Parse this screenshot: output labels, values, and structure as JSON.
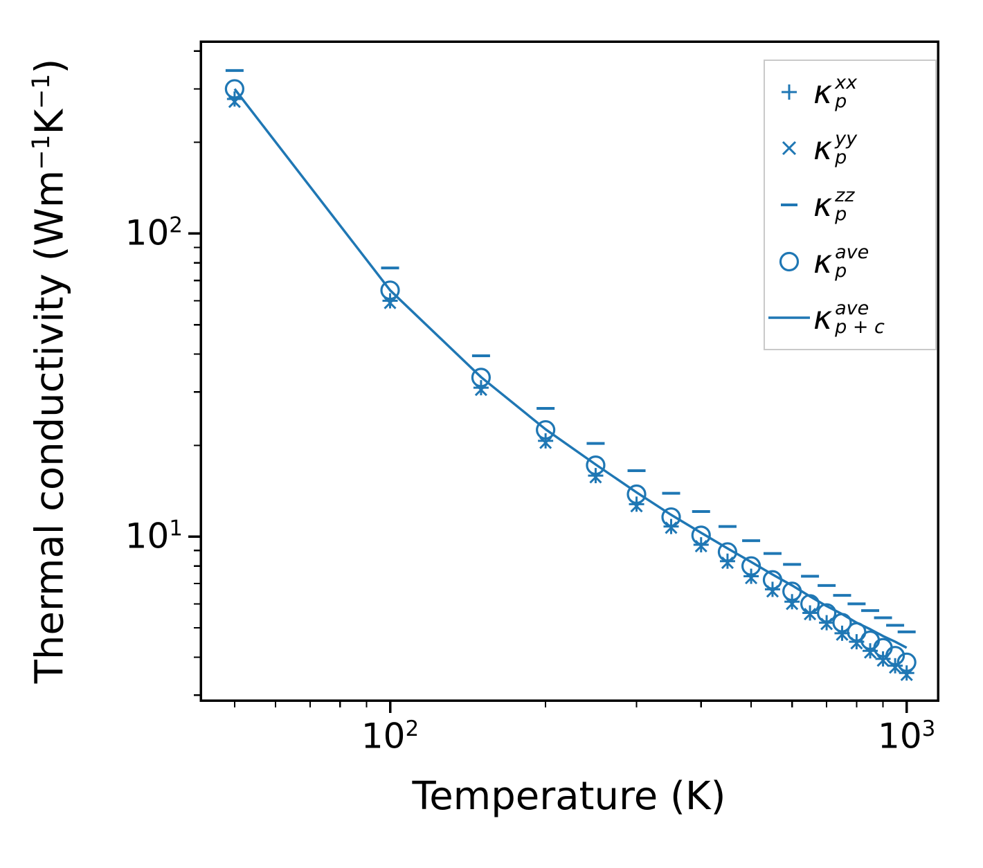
{
  "figure": {
    "background": "#ffffff",
    "accent_color": "#1f77b4"
  },
  "chart_data": {
    "type": "line+scatter",
    "xscale": "log",
    "yscale": "log",
    "title": "",
    "xlabel": "Temperature (K)",
    "ylabel": "Thermal conductivity (Wm⁻¹K⁻¹)",
    "ylabel_parts": [
      {
        "text": "Thermal conductivity (Wm"
      },
      {
        "text": "−1",
        "sup": true
      },
      {
        "text": "K"
      },
      {
        "text": "−1",
        "sup": true
      },
      {
        "text": ")"
      }
    ],
    "color": "#1f77b4",
    "xlim": [
      43,
      1150
    ],
    "ylim": [
      2.88,
      430
    ],
    "grid": false,
    "x": [
      50,
      100,
      150,
      200,
      250,
      300,
      350,
      400,
      450,
      500,
      550,
      600,
      650,
      700,
      750,
      800,
      850,
      900,
      950,
      1000
    ],
    "series": [
      {
        "name": "kappa-p-xx",
        "marker": "plus",
        "values": [
          278,
          60,
          31,
          20.7,
          15.9,
          12.8,
          10.8,
          9.4,
          8.3,
          7.4,
          6.7,
          6.1,
          5.6,
          5.2,
          4.8,
          4.5,
          4.2,
          3.95,
          3.75,
          3.55
        ]
      },
      {
        "name": "kappa-p-yy",
        "marker": "x",
        "values": [
          272,
          59,
          30.5,
          20.4,
          15.7,
          12.6,
          10.7,
          9.3,
          8.2,
          7.3,
          6.6,
          6.0,
          5.55,
          5.15,
          4.75,
          4.45,
          4.15,
          3.9,
          3.7,
          3.5
        ]
      },
      {
        "name": "kappa-p-zz",
        "marker": "hline",
        "values": [
          345,
          77,
          39.5,
          26.5,
          20.3,
          16.5,
          13.9,
          12.1,
          10.8,
          9.7,
          8.8,
          8.1,
          7.4,
          6.9,
          6.4,
          6.0,
          5.7,
          5.4,
          5.1,
          4.85
        ]
      },
      {
        "name": "kappa-p-ave",
        "marker": "circle",
        "values": [
          300,
          65,
          33.5,
          22.5,
          17.2,
          13.8,
          11.6,
          10.1,
          8.9,
          8.0,
          7.2,
          6.6,
          6.0,
          5.6,
          5.2,
          4.85,
          4.55,
          4.3,
          4.05,
          3.85
        ]
      },
      {
        "name": "kappa-p-plus-c-ave",
        "marker": "line",
        "values": [
          300,
          65,
          33.6,
          22.6,
          17.3,
          14.0,
          11.8,
          10.3,
          9.15,
          8.25,
          7.5,
          6.9,
          6.35,
          5.9,
          5.55,
          5.2,
          4.95,
          4.7,
          4.5,
          4.3
        ]
      }
    ],
    "xticks": [
      {
        "value": 100,
        "base": "10",
        "exp": "2"
      },
      {
        "value": 1000,
        "base": "10",
        "exp": "3"
      }
    ],
    "yticks": [
      {
        "value": 10,
        "base": "10",
        "exp": "1"
      },
      {
        "value": 100,
        "base": "10",
        "exp": "2"
      }
    ],
    "legend": {
      "position": "upper right",
      "entries": [
        {
          "marker": "plus",
          "base": "κ",
          "sub": "p",
          "sup": "xx"
        },
        {
          "marker": "x",
          "base": "κ",
          "sub": "p",
          "sup": "yy"
        },
        {
          "marker": "hline",
          "base": "κ",
          "sub": "p",
          "sup": "zz"
        },
        {
          "marker": "circle",
          "base": "κ",
          "sub": "p",
          "sup": "ave"
        },
        {
          "marker": "line",
          "base": "κ",
          "sub": "p + c",
          "sup": "ave"
        }
      ]
    }
  }
}
